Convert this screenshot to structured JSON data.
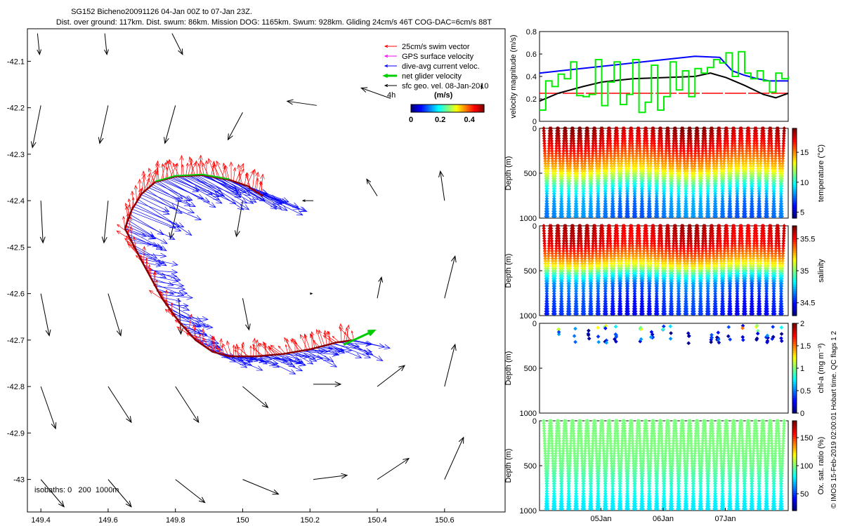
{
  "header": {
    "title_line1": "SG152 Bicheno20091126 04-Jan 00Z to 07-Jan 23Z.",
    "title_line2": "Dist. over ground: 117km. Dist. swum: 86km. Mission DOG: 1165km. Swum: 928km. Gliding 24cm/s 46T COG-DAC=6cm/s 88T"
  },
  "side_note": "© IMOS 15-Feb-2019 02:00:01 Hobart time. QC flags 1 2",
  "chart_data": [
    {
      "id": "map",
      "type": "scatter",
      "xlim": [
        149.36,
        150.78
      ],
      "ylim": [
        -43.07,
        -42.03
      ],
      "x_ticks": [
        149.4,
        149.6,
        149.8,
        150,
        150.2,
        150.4,
        150.6
      ],
      "x_tick_labels": [
        "149.4",
        "149.6",
        "149.8",
        "150",
        "150.2",
        "150.4",
        "150.6"
      ],
      "y_ticks": [
        -42.1,
        -42.2,
        -42.3,
        -42.4,
        -42.5,
        -42.6,
        -42.7,
        -42.8,
        -42.9,
        -43
      ],
      "y_tick_labels": [
        "-42.1",
        "-42.2",
        "-42.3",
        "-42.4",
        "-42.5",
        "-42.6",
        "-42.7",
        "-42.8",
        "-42.9",
        "-43"
      ],
      "legend": [
        {
          "label": "25cm/s swim vector",
          "color": "#ff0000"
        },
        {
          "label": "GPS surface velocity",
          "color": "#ff00ff"
        },
        {
          "label": "dive-avg current veloc.",
          "color": "#0000ff"
        },
        {
          "label": "net glider velocity",
          "color": "#00cc00"
        },
        {
          "label": "sfc geo. vel. 08-Jan-2010",
          "color": "#000000"
        }
      ],
      "legend_position": "top-right",
      "colorbar": {
        "label": "(m/s)",
        "ticks": [
          "0",
          "0.2",
          "0.4"
        ],
        "range": [
          0,
          0.5
        ],
        "colormap": "jet"
      },
      "scale_note": "4h",
      "isobaths": "isobaths: 0   200  1000m",
      "track": [
        [
          149.65,
          -42.46
        ],
        [
          149.67,
          -42.42
        ],
        [
          149.7,
          -42.385
        ],
        [
          149.74,
          -42.36
        ],
        [
          149.8,
          -42.348
        ],
        [
          149.88,
          -42.345
        ],
        [
          149.96,
          -42.355
        ],
        [
          150.02,
          -42.37
        ],
        [
          150.02,
          -42.372
        ],
        [
          150.06,
          -42.39
        ]
      ],
      "track_lower": [
        [
          149.65,
          -42.46
        ],
        [
          149.7,
          -42.53
        ],
        [
          149.76,
          -42.61
        ],
        [
          149.81,
          -42.66
        ],
        [
          149.86,
          -42.7
        ],
        [
          149.91,
          -42.725
        ],
        [
          149.96,
          -42.735
        ],
        [
          150.04,
          -42.735
        ],
        [
          150.12,
          -42.73
        ],
        [
          150.2,
          -42.72
        ],
        [
          150.28,
          -42.705
        ],
        [
          150.33,
          -42.7
        ]
      ],
      "net_glider_velocity": {
        "from": [
          150.3,
          -42.71
        ],
        "to": [
          150.39,
          -42.68
        ]
      },
      "geostrophic_vectors": [
        {
          "x": 149.39,
          "y": -42.04,
          "u": 0.01,
          "v": -0.1
        },
        {
          "x": 149.59,
          "y": -42.04,
          "u": 0.01,
          "v": -0.1
        },
        {
          "x": 149.79,
          "y": -42.04,
          "u": 0.05,
          "v": -0.1
        },
        {
          "x": 149.4,
          "y": -42.195,
          "u": -0.04,
          "v": -0.2
        },
        {
          "x": 149.6,
          "y": -42.195,
          "u": -0.04,
          "v": -0.18
        },
        {
          "x": 149.8,
          "y": -42.195,
          "u": -0.05,
          "v": -0.18
        },
        {
          "x": 150.0,
          "y": -42.21,
          "u": -0.07,
          "v": -0.13
        },
        {
          "x": 150.22,
          "y": -42.195,
          "u": -0.14,
          "v": 0.02
        },
        {
          "x": 150.44,
          "y": -42.18,
          "u": -0.14,
          "v": 0.05
        },
        {
          "x": 150.71,
          "y": -42.16,
          "u": 0.0,
          "v": 0.02
        },
        {
          "x": 149.4,
          "y": -42.4,
          "u": 0.01,
          "v": -0.2
        },
        {
          "x": 149.6,
          "y": -42.4,
          "u": -0.02,
          "v": -0.2
        },
        {
          "x": 149.81,
          "y": -42.4,
          "u": -0.04,
          "v": -0.18
        },
        {
          "x": 150.0,
          "y": -42.4,
          "u": -0.03,
          "v": -0.17
        },
        {
          "x": 150.21,
          "y": -42.4,
          "u": -0.05,
          "v": 0.0
        },
        {
          "x": 150.4,
          "y": -42.39,
          "u": -0.05,
          "v": 0.08
        },
        {
          "x": 150.6,
          "y": -42.4,
          "u": -0.02,
          "v": 0.14
        },
        {
          "x": 149.4,
          "y": -42.6,
          "u": 0.04,
          "v": -0.2
        },
        {
          "x": 149.6,
          "y": -42.6,
          "u": 0.06,
          "v": -0.2
        },
        {
          "x": 149.81,
          "y": -42.61,
          "u": 0.01,
          "v": -0.17
        },
        {
          "x": 150.0,
          "y": -42.61,
          "u": 0.03,
          "v": -0.15
        },
        {
          "x": 150.2,
          "y": -42.6,
          "u": 0.01,
          "v": 0.0
        },
        {
          "x": 150.4,
          "y": -42.61,
          "u": 0.02,
          "v": 0.1
        },
        {
          "x": 150.6,
          "y": -42.61,
          "u": 0.05,
          "v": 0.2
        },
        {
          "x": 149.4,
          "y": -42.8,
          "u": 0.07,
          "v": -0.2
        },
        {
          "x": 149.6,
          "y": -42.8,
          "u": 0.11,
          "v": -0.17
        },
        {
          "x": 149.8,
          "y": -42.8,
          "u": 0.11,
          "v": -0.17
        },
        {
          "x": 150.0,
          "y": -42.8,
          "u": 0.12,
          "v": -0.1
        },
        {
          "x": 150.21,
          "y": -42.795,
          "u": 0.13,
          "v": 0.0
        },
        {
          "x": 150.4,
          "y": -42.8,
          "u": 0.13,
          "v": 0.1
        },
        {
          "x": 150.6,
          "y": -42.8,
          "u": 0.05,
          "v": 0.2
        },
        {
          "x": 149.4,
          "y": -43.0,
          "u": 0.11,
          "v": -0.13
        },
        {
          "x": 149.6,
          "y": -43.0,
          "u": 0.11,
          "v": -0.13
        },
        {
          "x": 149.8,
          "y": -43.0,
          "u": 0.14,
          "v": -0.11
        },
        {
          "x": 150.0,
          "y": -43.0,
          "u": 0.17,
          "v": -0.07
        },
        {
          "x": 150.21,
          "y": -43.0,
          "u": 0.16,
          "v": 0.02
        },
        {
          "x": 150.4,
          "y": -43.0,
          "u": 0.15,
          "v": 0.1
        },
        {
          "x": 150.6,
          "y": -43.0,
          "u": 0.09,
          "v": 0.2
        }
      ]
    },
    {
      "id": "velocity",
      "type": "line",
      "ylabel": "velocity magnitude (m/s)",
      "ylim": [
        0,
        0.8
      ],
      "y_ticks": [
        "0",
        "0.2",
        "0.4",
        "0.6",
        "0.8"
      ],
      "xlim": [
        0,
        4
      ],
      "series": [
        {
          "color": "#ff0000",
          "x": [
            0,
            4
          ],
          "values": [
            0.25,
            0.25
          ]
        },
        {
          "color": "#0000ff",
          "x": [
            0,
            0.5,
            1.0,
            1.5,
            2.0,
            2.5,
            2.9,
            3.1,
            3.3,
            3.5,
            3.7,
            4.0
          ],
          "values": [
            0.43,
            0.46,
            0.49,
            0.52,
            0.55,
            0.58,
            0.57,
            0.45,
            0.41,
            0.38,
            0.36,
            0.36
          ]
        },
        {
          "color": "#000000",
          "x": [
            0,
            0.3,
            0.7,
            1.0,
            1.5,
            2.0,
            2.5,
            2.75,
            3.0,
            3.3,
            3.6,
            3.8,
            4.0
          ],
          "values": [
            0.18,
            0.25,
            0.31,
            0.35,
            0.38,
            0.39,
            0.4,
            0.43,
            0.39,
            0.32,
            0.24,
            0.21,
            0.25
          ]
        },
        {
          "color": "#00ee00",
          "x": [
            0,
            0.1,
            0.2,
            0.3,
            0.4,
            0.5,
            0.6,
            0.7,
            0.8,
            0.9,
            1.0,
            1.1,
            1.2,
            1.3,
            1.4,
            1.5,
            1.6,
            1.7,
            1.8,
            1.9,
            2.0,
            2.1,
            2.2,
            2.3,
            2.4,
            2.5,
            2.6,
            2.7,
            2.8,
            2.9,
            3.0,
            3.1,
            3.2,
            3.3,
            3.4,
            3.5,
            3.6,
            3.7,
            3.8,
            3.9,
            4.0
          ],
          "values": [
            0.1,
            0.36,
            0.31,
            0.42,
            0.38,
            0.53,
            0.23,
            0.22,
            0.24,
            0.55,
            0.14,
            0.35,
            0.53,
            0.15,
            0.24,
            0.55,
            0.08,
            0.17,
            0.5,
            0.1,
            0.22,
            0.53,
            0.28,
            0.45,
            0.22,
            0.47,
            0.43,
            0.48,
            0.55,
            0.52,
            0.61,
            0.4,
            0.62,
            0.43,
            0.38,
            0.45,
            0.36,
            0.26,
            0.43,
            0.38,
            0.4
          ]
        }
      ]
    },
    {
      "id": "temperature",
      "type": "scatter",
      "ylabel": "Depth (m)",
      "colorbar_label": "temperature (°C)",
      "colorbar_ticks": [
        "5",
        "10",
        "15"
      ],
      "crange": [
        4,
        19
      ],
      "y_ticks": [
        "0",
        "500",
        "1000"
      ],
      "ylim": [
        0,
        1000
      ],
      "profile_count": 33,
      "profile": [
        [
          0,
          18.5
        ],
        [
          150,
          17.5
        ],
        [
          300,
          16
        ],
        [
          450,
          14
        ],
        [
          550,
          12
        ],
        [
          650,
          10
        ],
        [
          800,
          8
        ],
        [
          1000,
          7.5
        ]
      ]
    },
    {
      "id": "salinity",
      "type": "scatter",
      "ylabel": "Depth (m)",
      "colorbar_label": "salinity",
      "colorbar_ticks": [
        "34.5",
        "35",
        "35.5"
      ],
      "crange": [
        34.3,
        35.7
      ],
      "y_ticks": [
        "0",
        "500",
        "1000"
      ],
      "ylim": [
        0,
        1000
      ],
      "profile_count": 33,
      "profile": [
        [
          0,
          35.6
        ],
        [
          200,
          35.55
        ],
        [
          350,
          35.35
        ],
        [
          450,
          35.15
        ],
        [
          550,
          34.85
        ],
        [
          650,
          34.65
        ],
        [
          800,
          34.55
        ],
        [
          1000,
          34.5
        ]
      ]
    },
    {
      "id": "chlorophyll",
      "type": "scatter",
      "ylabel": "Depth (m)",
      "colorbar_label": "chl-a (mg m⁻³)",
      "colorbar_ticks": [
        "0",
        "0.5",
        "1",
        "1.5",
        "2"
      ],
      "crange": [
        0,
        2
      ],
      "y_ticks": [
        "0",
        "500",
        "1000"
      ],
      "ylim": [
        0,
        1000
      ],
      "depth_max": 200
    },
    {
      "id": "oxygen",
      "type": "scatter",
      "ylabel": "Depth (m)",
      "colorbar_label": "Ox. sat. ratio (%)",
      "colorbar_ticks": [
        "50",
        "100",
        "150"
      ],
      "crange": [
        20,
        180
      ],
      "y_ticks": [
        "0",
        "500",
        "1000"
      ],
      "ylim": [
        0,
        1000
      ],
      "profile_count": 33,
      "x_tick_labels": [
        "05Jan",
        "06Jan",
        "07Jan"
      ],
      "x_tick_days": [
        1,
        2,
        3
      ],
      "profile": [
        [
          0,
          100
        ],
        [
          300,
          100
        ],
        [
          500,
          98
        ],
        [
          700,
          88
        ],
        [
          850,
          80
        ],
        [
          1000,
          76
        ]
      ]
    }
  ]
}
